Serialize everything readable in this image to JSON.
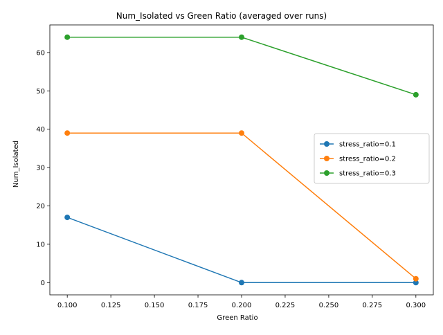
{
  "chart_data": {
    "type": "line",
    "title": "Num_Isolated vs Green Ratio (averaged over runs)",
    "xlabel": "Green Ratio",
    "ylabel": "Num_Isolated",
    "x": [
      0.1,
      0.2,
      0.3
    ],
    "xlim": [
      0.09,
      0.31
    ],
    "ylim": [
      -3.2,
      67.2
    ],
    "xticks": [
      0.1,
      0.125,
      0.15,
      0.175,
      0.2,
      0.225,
      0.25,
      0.275,
      0.3
    ],
    "xtick_labels": [
      "0.100",
      "0.125",
      "0.150",
      "0.175",
      "0.200",
      "0.225",
      "0.250",
      "0.275",
      "0.300"
    ],
    "yticks": [
      0,
      10,
      20,
      30,
      40,
      50,
      60
    ],
    "ytick_labels": [
      "0",
      "10",
      "20",
      "30",
      "40",
      "50",
      "60"
    ],
    "grid": false,
    "legend_position": "center-right",
    "series": [
      {
        "name": "stress_ratio=0.1",
        "values": [
          17,
          0,
          0
        ],
        "color": "#1f77b4"
      },
      {
        "name": "stress_ratio=0.2",
        "values": [
          39,
          39,
          1
        ],
        "color": "#ff7f0e"
      },
      {
        "name": "stress_ratio=0.3",
        "values": [
          64,
          64,
          49
        ],
        "color": "#2ca02c"
      }
    ]
  }
}
